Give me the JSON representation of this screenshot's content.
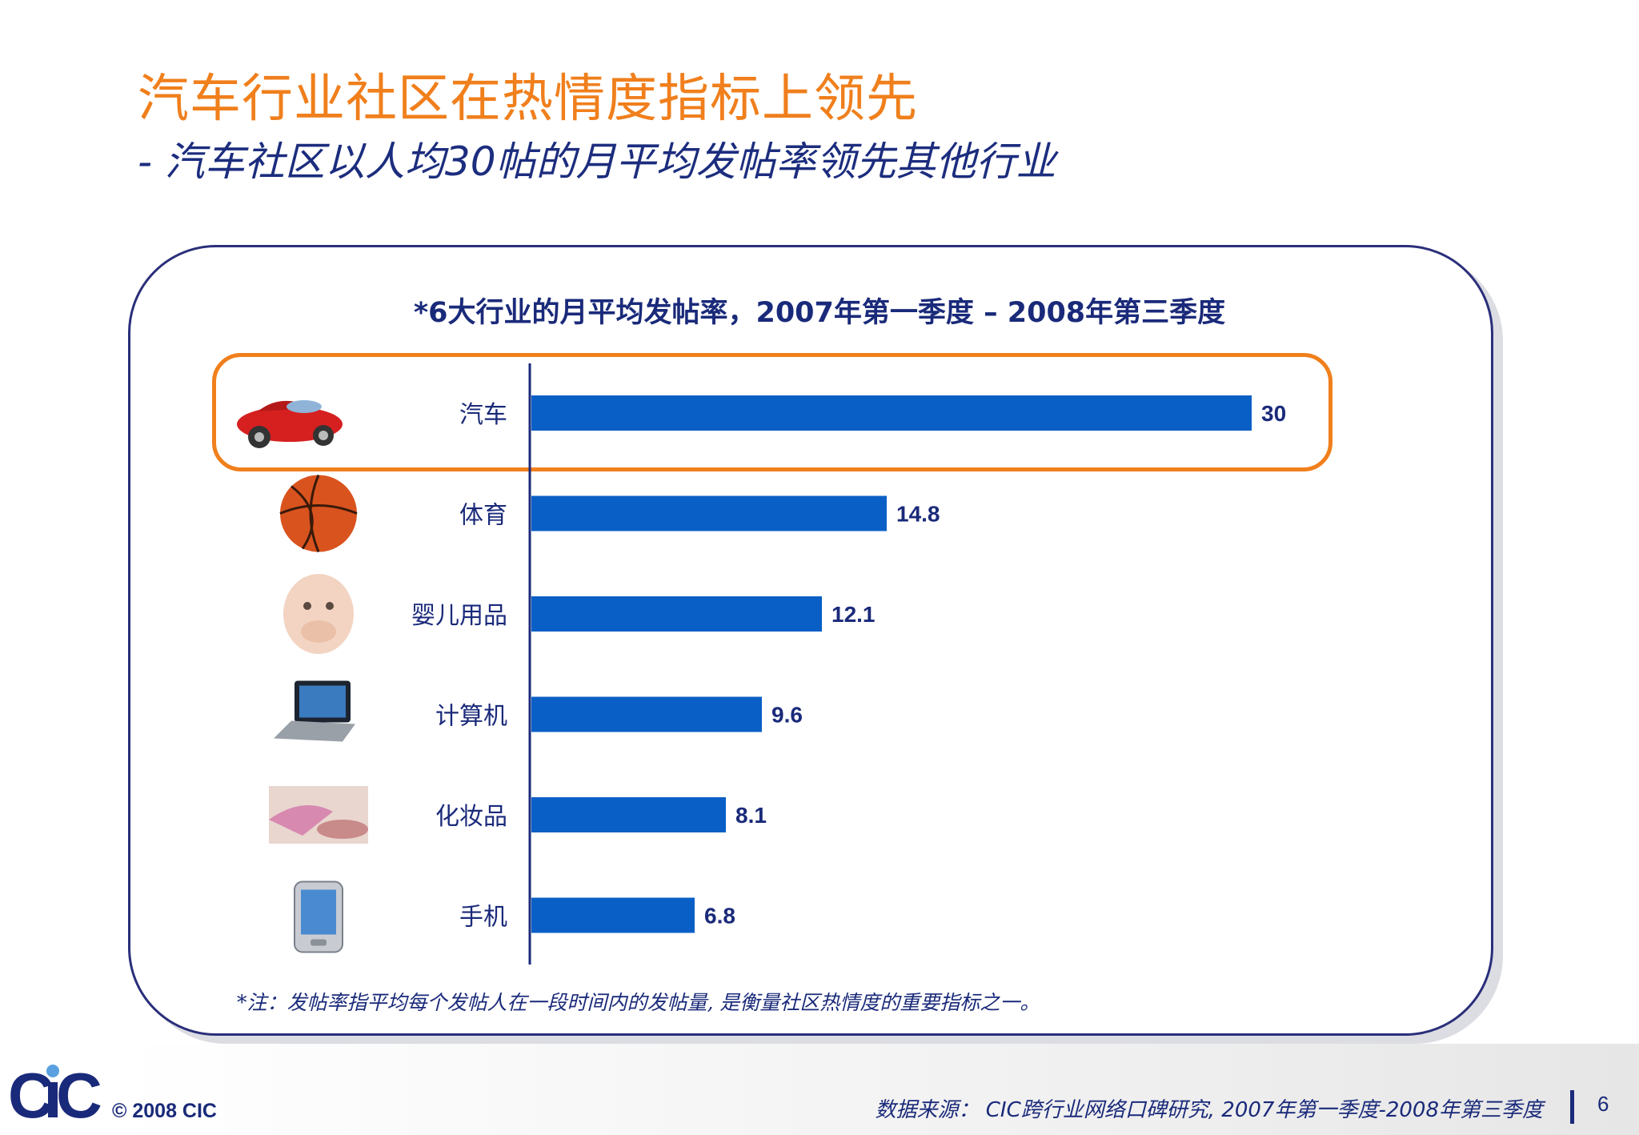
{
  "slide": {
    "title": "汽车行业社区在热情度指标上领先",
    "subtitle": "- 汽车社区以人均30帖的月平均发帖率领先其他行业",
    "note": "*注：发帖率指平均每个发帖人在一段时间内的发帖量, 是衡量社区热情度的重要指标之一。",
    "copyright": "© 2008  CIC",
    "source": "数据来源： CIC跨行业网络口碑研究, 2007年第一季度-2008年第三季度",
    "page_number": "6",
    "logo_text": "CIC"
  },
  "colors": {
    "title": "#f07f1c",
    "subtitle": "#1c2d7e",
    "bar": "#0a5fc6",
    "highlight": "#f07f1c",
    "panel_border": "#2a2f7a"
  },
  "chart_data": {
    "type": "bar",
    "orientation": "horizontal",
    "title": "*6大行业的月平均发帖率，2007年第一季度 – 2008年第三季度",
    "categories": [
      "汽车",
      "体育",
      "婴儿用品",
      "计算机",
      "化妆品",
      "手机"
    ],
    "values": [
      30,
      14.8,
      12.1,
      9.6,
      8.1,
      6.8
    ],
    "value_labels": [
      "30",
      "14.8",
      "12.1",
      "9.6",
      "8.1",
      "6.8"
    ],
    "icons": [
      "car-icon",
      "basketball-icon",
      "baby-icon",
      "laptop-icon",
      "lipstick-icon",
      "phone-icon"
    ],
    "highlighted_category": "汽车",
    "xlim": [
      0,
      30
    ],
    "grid": false,
    "legend": "none"
  }
}
